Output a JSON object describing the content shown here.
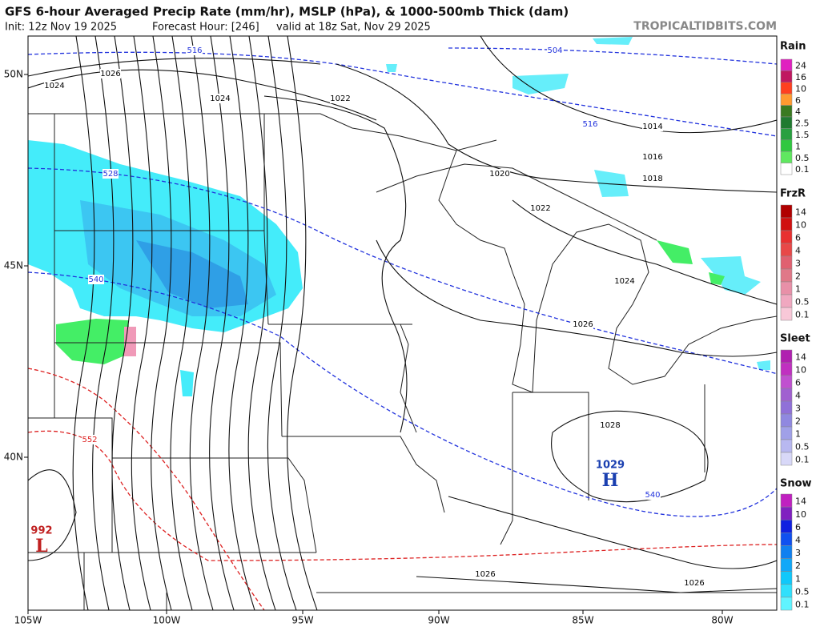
{
  "header": {
    "title": "GFS 6-hour Averaged Precip Rate (mm/hr), MSLP (hPa), & 1000-500mb Thick (dam)",
    "init": "Init: 12z Nov 19 2025",
    "forecast_hour": "Forecast Hour: [246]",
    "valid": "valid at 18z Sat, Nov 29 2025",
    "watermark": "TROPICALTIDBITS.COM"
  },
  "map": {
    "lat_labels": [
      "50N",
      "45N",
      "40N"
    ],
    "lon_labels": [
      "105W",
      "100W",
      "95W",
      "90W",
      "85W",
      "80W"
    ],
    "isobar_labels": [
      "1026",
      "1024",
      "1024",
      "1022",
      "1020",
      "1014",
      "1016",
      "1018",
      "1022",
      "1024",
      "1026",
      "1028",
      "1026",
      "1026"
    ],
    "thickness_labels": [
      "516",
      "504",
      "516",
      "528",
      "540",
      "552",
      "540"
    ],
    "centers": [
      {
        "value": "1029",
        "symbol": "H"
      },
      {
        "value": "992",
        "symbol": "L"
      }
    ]
  },
  "legend": [
    {
      "title": "Rain",
      "levels": [
        "24",
        "16",
        "10",
        "6",
        "4",
        "2.5",
        "1.5",
        "1",
        "0.5",
        "0.1"
      ]
    },
    {
      "title": "FrzR",
      "levels": [
        "14",
        "10",
        "6",
        "4",
        "3",
        "2",
        "1",
        "0.5",
        "0.1"
      ]
    },
    {
      "title": "Sleet",
      "levels": [
        "14",
        "10",
        "6",
        "4",
        "3",
        "2",
        "1",
        "0.5",
        "0.1"
      ]
    },
    {
      "title": "Snow",
      "levels": [
        "14",
        "10",
        "6",
        "4",
        "3",
        "2",
        "1",
        "0.5",
        "0.1"
      ]
    }
  ]
}
